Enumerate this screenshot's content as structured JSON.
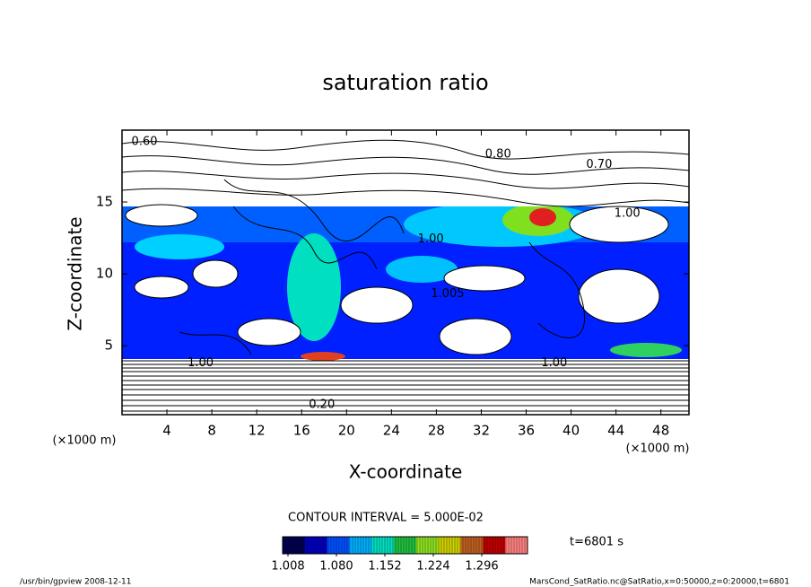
{
  "chart_data": {
    "type": "contour",
    "title": "saturation ratio",
    "xlabel": "X-coordinate",
    "ylabel": "Z-coordinate",
    "x_unit": "(×1000 m)",
    "y_unit": "(×1000 m)",
    "xlim": [
      0,
      50.5
    ],
    "ylim": [
      0.2,
      20
    ],
    "xticks": [
      4,
      8,
      12,
      16,
      20,
      24,
      28,
      32,
      36,
      40,
      44,
      48
    ],
    "yticks": [
      5,
      10,
      15
    ],
    "contour_labels": [
      {
        "text": "0.60",
        "x": 2,
        "y": 19.2
      },
      {
        "text": "0.80",
        "x": 33.5,
        "y": 18.3
      },
      {
        "text": "0.70",
        "x": 42.5,
        "y": 17.6
      },
      {
        "text": "1.00",
        "x": 45,
        "y": 14.2
      },
      {
        "text": "1.00",
        "x": 27.5,
        "y": 12.4
      },
      {
        "text": "1.005",
        "x": 29,
        "y": 8.6
      },
      {
        "text": "1.00",
        "x": 7,
        "y": 3.8
      },
      {
        "text": "1.00",
        "x": 38.5,
        "y": 3.8
      },
      {
        "text": "0.20",
        "x": 17.8,
        "y": 0.9
      }
    ],
    "contour_interval": "CONTOUR INTERVAL = 5.000E-02",
    "colorbar": {
      "clim": [
        1.0,
        1.364
      ],
      "ticks": [
        1.008,
        {
          "value": 1.08,
          "label": "1.080"
        },
        1.152,
        1.224,
        1.296
      ],
      "colormap": [
        "#000050",
        "#0000c0",
        "#0050ff",
        "#00b0ff",
        "#00e0c0",
        "#20c040",
        "#90e020",
        "#d0d000",
        "#c06020",
        "#c00000",
        "#ff8080"
      ]
    },
    "time_label": "t=6801 s",
    "footer_left": "/usr/bin/gpview   2008-12-11",
    "footer_right": "MarsCond_SatRatio.nc@SatRatio,x=0:50000,z=0:20000,t=6801"
  }
}
